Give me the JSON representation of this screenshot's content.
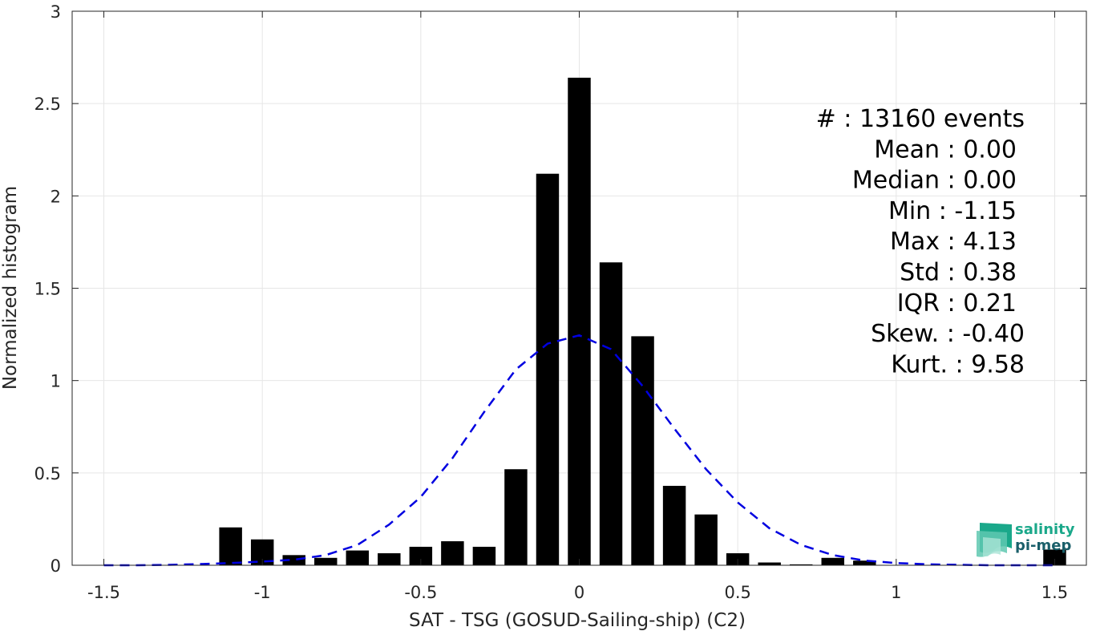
{
  "chart_data": {
    "type": "bar",
    "title": "",
    "xlabel": "SAT - TSG (GOSUD-Sailing-ship) (C2)",
    "ylabel": "Normalized histogram",
    "xlim": [
      -1.6,
      1.6
    ],
    "ylim": [
      0,
      3
    ],
    "grid": true,
    "bar_color": "#000000",
    "bar_width": 0.072,
    "xticks": [
      -1.5,
      -1,
      -0.5,
      0,
      0.5,
      1,
      1.5
    ],
    "xtick_labels": [
      "-1.5",
      "-1",
      "-0.5",
      "0",
      "0.5",
      "1",
      "1.5"
    ],
    "yticks": [
      0,
      0.5,
      1,
      1.5,
      2,
      2.5,
      3
    ],
    "ytick_labels": [
      "0",
      "0.5",
      "1",
      "1.5",
      "2",
      "2.5",
      "3"
    ],
    "bars": {
      "x": [
        -1.1,
        -1.0,
        -0.9,
        -0.8,
        -0.7,
        -0.6,
        -0.5,
        -0.4,
        -0.3,
        -0.2,
        -0.1,
        0.0,
        0.1,
        0.2,
        0.3,
        0.4,
        0.5,
        0.6,
        0.7,
        0.8,
        0.9,
        1.0,
        1.1,
        1.2,
        1.3,
        1.4,
        1.5
      ],
      "values": [
        0.205,
        0.14,
        0.055,
        0.04,
        0.08,
        0.065,
        0.1,
        0.13,
        0.1,
        0.52,
        2.12,
        2.64,
        1.64,
        1.24,
        0.43,
        0.275,
        0.065,
        0.015,
        0.005,
        0.04,
        0.025,
        0.0,
        0.0,
        0.0,
        0.0,
        0.0,
        0.085
      ]
    },
    "fit_curve": {
      "style": "dashed",
      "color": "#0000e0",
      "x": [
        -1.5,
        -1.4,
        -1.3,
        -1.2,
        -1.1,
        -1.0,
        -0.9,
        -0.8,
        -0.7,
        -0.6,
        -0.5,
        -0.4,
        -0.3,
        -0.2,
        -0.1,
        0.0,
        0.1,
        0.2,
        0.3,
        0.4,
        0.5,
        0.6,
        0.7,
        0.8,
        0.9,
        1.0,
        1.1,
        1.2,
        1.3,
        1.4,
        1.5
      ],
      "y": [
        0.0,
        0.0,
        0.002,
        0.006,
        0.012,
        0.02,
        0.03,
        0.055,
        0.11,
        0.22,
        0.37,
        0.58,
        0.83,
        1.06,
        1.2,
        1.245,
        1.17,
        0.97,
        0.74,
        0.52,
        0.34,
        0.2,
        0.11,
        0.055,
        0.025,
        0.012,
        0.005,
        0.002,
        0.0,
        0.0,
        0.0
      ]
    }
  },
  "stats": [
    {
      "label": "#",
      "sep": " : ",
      "value": "13160 events"
    },
    {
      "label": "Mean",
      "sep": " : ",
      "value": "0.00"
    },
    {
      "label": "Median",
      "sep": " : ",
      "value": "0.00"
    },
    {
      "label": "Min",
      "sep": " : ",
      "value": "-1.15"
    },
    {
      "label": "Max",
      "sep": " : ",
      "value": "4.13"
    },
    {
      "label": "Std",
      "sep": " : ",
      "value": "0.38"
    },
    {
      "label": "IQR",
      "sep": " : ",
      "value": "0.21"
    },
    {
      "label": "Skew.",
      "sep": " : ",
      "value": "-0.40"
    },
    {
      "label": "Kurt.",
      "sep": " : ",
      "value": "9.58"
    }
  ],
  "logo": {
    "line1": "salinity",
    "line2": "pi-mep",
    "color1": "#1aa88a",
    "color2": "#1a5f6a",
    "icon": "salinity-waves-icon"
  }
}
